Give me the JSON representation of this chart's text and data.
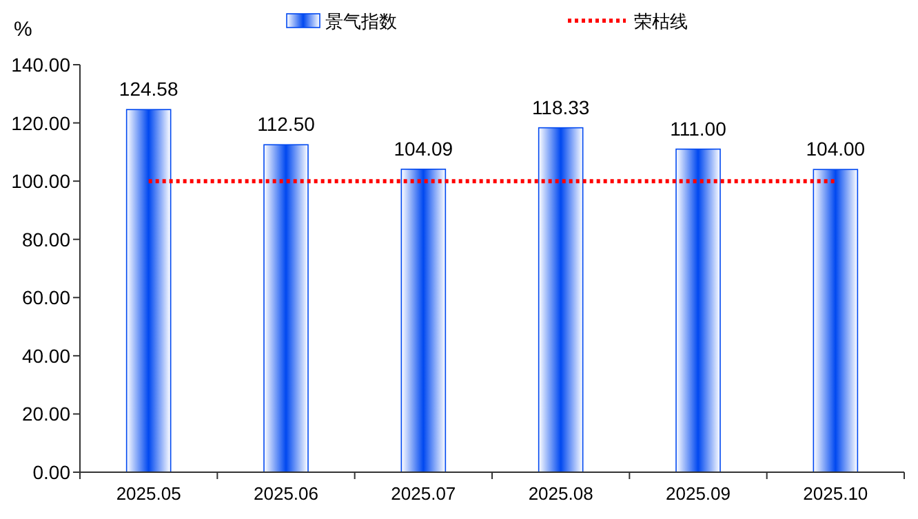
{
  "chart_data": {
    "type": "bar",
    "ylabel": "%",
    "categories": [
      "2025.05",
      "2025.06",
      "2025.07",
      "2025.08",
      "2025.09",
      "2025.10"
    ],
    "series": [
      {
        "name": "景气指数",
        "color": "#0048f0",
        "values": [
          124.58,
          112.5,
          104.09,
          118.33,
          111.0,
          104.0
        ],
        "value_labels": [
          "124.58",
          "112.50",
          "104.09",
          "118.33",
          "111.00",
          "104.00"
        ]
      },
      {
        "name": "荣枯线",
        "type": "line",
        "color": "#ff0000",
        "line_style": "dotted",
        "values": [
          100,
          100,
          100,
          100,
          100,
          100
        ]
      }
    ],
    "ylim": [
      0,
      140
    ],
    "yticks": [
      {
        "value": 0,
        "label": "0.00"
      },
      {
        "value": 20,
        "label": "20.00"
      },
      {
        "value": 40,
        "label": "40.00"
      },
      {
        "value": 60,
        "label": "60.00"
      },
      {
        "value": 80,
        "label": "80.00"
      },
      {
        "value": 100,
        "label": "100.00"
      },
      {
        "value": 120,
        "label": "120.00"
      },
      {
        "value": 140,
        "label": "140.00"
      }
    ],
    "legend": "top",
    "grid": false
  }
}
